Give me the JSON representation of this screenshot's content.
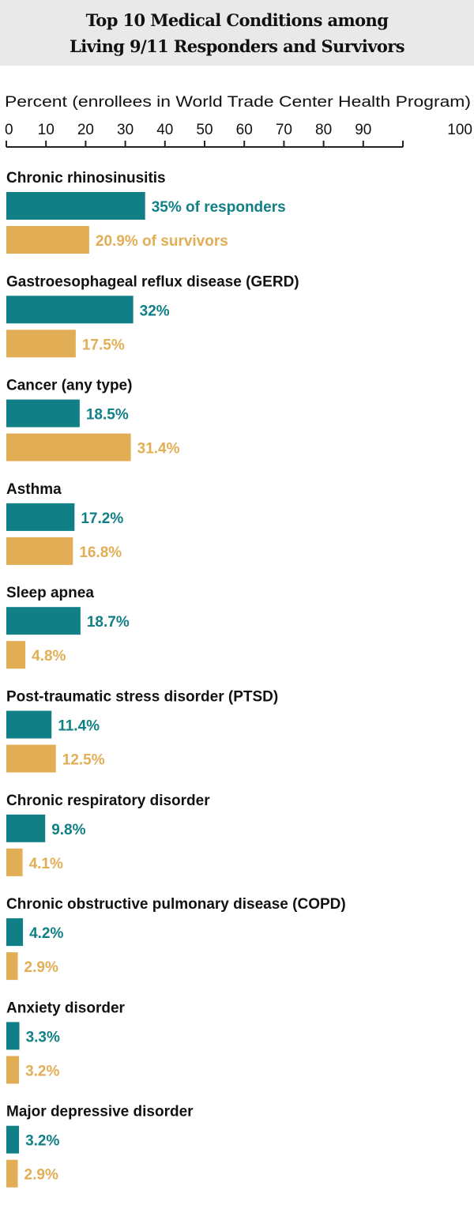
{
  "chart_data": {
    "type": "bar",
    "orientation": "horizontal",
    "title": [
      "Top 10 Medical Conditions among",
      "Living 9/11 Responders and Survivors"
    ],
    "xlabel": "Percent (enrollees in World Trade Center Health Program)",
    "xlim": [
      0,
      100
    ],
    "xticks": [
      0,
      10,
      20,
      30,
      40,
      50,
      60,
      70,
      80,
      90,
      100
    ],
    "grid": false,
    "categories": [
      "Chronic rhinosinusitis",
      "Gastroesophageal reflux disease (GERD)",
      "Cancer (any type)",
      "Asthma",
      "Sleep apnea",
      "Post-traumatic stress disorder (PTSD)",
      "Chronic respiratory disorder",
      "Chronic obstructive pulmonary disease (COPD)",
      "Anxiety disorder",
      "Major depressive disorder"
    ],
    "series": [
      {
        "name": "responders",
        "color": "#108086",
        "values": [
          35,
          32,
          18.5,
          17.2,
          18.7,
          11.4,
          9.8,
          4.2,
          3.3,
          3.2
        ],
        "labels": [
          "35% of responders",
          "32%",
          "18.5%",
          "17.2%",
          "18.7%",
          "11.4%",
          "9.8%",
          "4.2%",
          "3.3%",
          "3.2%"
        ]
      },
      {
        "name": "survivors",
        "color": "#e2ae55",
        "values": [
          20.9,
          17.5,
          31.4,
          16.8,
          4.8,
          12.5,
          4.1,
          2.9,
          3.2,
          2.9
        ],
        "labels": [
          "20.9% of survivors",
          "17.5%",
          "31.4%",
          "16.8%",
          "4.8%",
          "12.5%",
          "4.1%",
          "2.9%",
          "3.2%",
          "2.9%"
        ]
      }
    ]
  }
}
